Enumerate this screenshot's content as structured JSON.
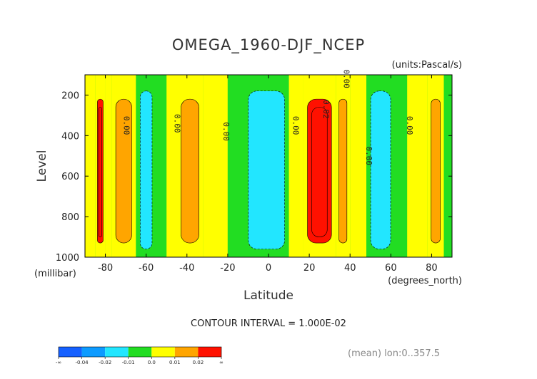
{
  "chart_data": {
    "type": "heatmap",
    "title": "OMEGA_1960-DJF_NCEP",
    "units": "(units:Pascal/s)",
    "xlabel": "Latitude",
    "ylabel": "Level",
    "x_unit_label": "(degrees_north)",
    "y_unit_label": "(millibar)",
    "xlim": [
      -90,
      90
    ],
    "ylim": [
      1000,
      100
    ],
    "x_ticks": [
      -80,
      -60,
      -40,
      -20,
      0,
      20,
      40,
      60,
      80
    ],
    "y_ticks": [
      200,
      400,
      600,
      800,
      1000
    ],
    "contour_interval_text": "CONTOUR INTERVAL = 1.000E-02",
    "footnote": "(mean) lon:0..357.5",
    "contour_labels": [
      {
        "text": "0.00",
        "lat": -71,
        "level": 350
      },
      {
        "text": "0.00",
        "lat": -46,
        "level": 340
      },
      {
        "text": "0.00",
        "lat": -22,
        "level": 380
      },
      {
        "text": "0.00",
        "lat": 12,
        "level": 350
      },
      {
        "text": "0.02",
        "lat": 27,
        "level": 270
      },
      {
        "text": "0.00",
        "lat": 37,
        "level": 120
      },
      {
        "text": "0.00",
        "lat": 48,
        "level": 500
      },
      {
        "text": "0.00",
        "lat": 68,
        "level": 350
      }
    ],
    "colorbar": {
      "colors": [
        "#1560ff",
        "#0d9bff",
        "#22e6ff",
        "#22dd22",
        "#ffff00",
        "#ffa500",
        "#ff1100"
      ],
      "labels": [
        "-∞",
        "-0.04",
        "-0.02",
        "-0.01",
        "0.0",
        "0.01",
        "0.02",
        "∞"
      ]
    },
    "bands": [
      {
        "lat0": -90,
        "lat1": -85,
        "value": 0.005
      },
      {
        "lat0": -85,
        "lat1": -80,
        "value": 0.03
      },
      {
        "lat0": -80,
        "lat1": -77,
        "value": 0.005
      },
      {
        "lat0": -77,
        "lat1": -65,
        "value": 0.012
      },
      {
        "lat0": -65,
        "lat1": -55,
        "value": -0.013
      },
      {
        "lat0": -55,
        "lat1": -50,
        "value": -0.004
      },
      {
        "lat0": -50,
        "lat1": -45,
        "value": 0.004
      },
      {
        "lat0": -45,
        "lat1": -32,
        "value": 0.014
      },
      {
        "lat0": -32,
        "lat1": -20,
        "value": 0.004
      },
      {
        "lat0": -20,
        "lat1": -12,
        "value": -0.004
      },
      {
        "lat0": -12,
        "lat1": 10,
        "value": -0.016
      },
      {
        "lat0": 10,
        "lat1": 17,
        "value": 0.004
      },
      {
        "lat0": 17,
        "lat1": 33,
        "value": 0.03
      },
      {
        "lat0": 33,
        "lat1": 40,
        "value": 0.012
      },
      {
        "lat0": 40,
        "lat1": 48,
        "value": 0.004
      },
      {
        "lat0": 48,
        "lat1": 62,
        "value": -0.015
      },
      {
        "lat0": 62,
        "lat1": 68,
        "value": -0.004
      },
      {
        "lat0": 68,
        "lat1": 78,
        "value": 0.004
      },
      {
        "lat0": 78,
        "lat1": 86,
        "value": 0.014
      },
      {
        "lat0": 86,
        "lat1": 90,
        "value": -0.004
      }
    ]
  }
}
